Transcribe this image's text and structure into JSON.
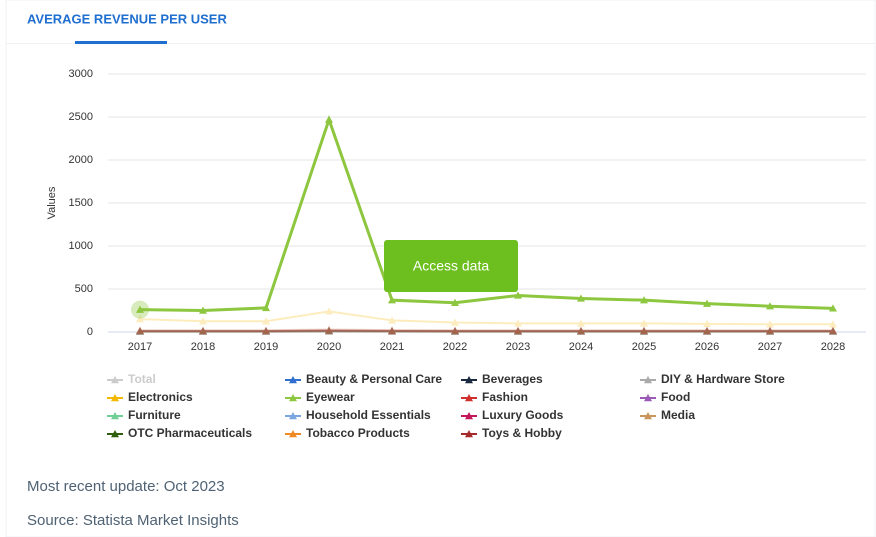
{
  "tab": "AVERAGE REVENUE PER USER",
  "button": "Access data",
  "footer": {
    "update": "Most recent update: Oct 2023",
    "source": "Source: Statista Market Insights"
  },
  "chart_data": {
    "type": "line",
    "y_label": "Values",
    "categories": [
      "2017",
      "2018",
      "2019",
      "2020",
      "2021",
      "2022",
      "2023",
      "2024",
      "2025",
      "2026",
      "2027",
      "2028"
    ],
    "ylim": [
      0,
      3000
    ],
    "yticks": [
      0,
      500,
      1000,
      1500,
      2000,
      2500,
      3000
    ],
    "grid": true,
    "highlighted": "Eyewear",
    "hover_index": 0,
    "series": [
      {
        "name": "Total",
        "color": "#bbbbbb",
        "visible": false,
        "values": [
          null,
          null,
          null,
          null,
          null,
          null,
          null,
          null,
          null,
          null,
          null,
          null
        ]
      },
      {
        "name": "Beauty & Personal Care",
        "color": "#2f6fd0",
        "values": [
          8,
          8,
          8,
          12,
          9,
          8,
          8,
          8,
          8,
          8,
          8,
          8
        ]
      },
      {
        "name": "Beverages",
        "color": "#1b2a41",
        "values": [
          5,
          5,
          5,
          8,
          6,
          5,
          5,
          5,
          5,
          5,
          5,
          5
        ]
      },
      {
        "name": "DIY & Hardware Store",
        "color": "#aaaaaa",
        "values": [
          10,
          10,
          10,
          15,
          11,
          10,
          10,
          10,
          10,
          10,
          10,
          10
        ]
      },
      {
        "name": "Electronics",
        "color": "#f5b800",
        "values": [
          150,
          125,
          125,
          240,
          135,
          110,
          100,
          100,
          100,
          95,
          90,
          90
        ]
      },
      {
        "name": "Eyewear",
        "color": "#8dc63f",
        "values": [
          260,
          250,
          280,
          2470,
          370,
          340,
          425,
          390,
          370,
          330,
          300,
          275
        ]
      },
      {
        "name": "Fashion",
        "color": "#d0312d",
        "values": [
          12,
          12,
          12,
          18,
          13,
          12,
          12,
          12,
          12,
          12,
          12,
          12
        ]
      },
      {
        "name": "Food",
        "color": "#9b59b6",
        "values": [
          6,
          6,
          6,
          9,
          7,
          6,
          6,
          6,
          6,
          6,
          6,
          6
        ]
      },
      {
        "name": "Furniture",
        "color": "#6fcf97",
        "values": [
          9,
          9,
          9,
          14,
          10,
          9,
          9,
          9,
          9,
          9,
          9,
          9
        ]
      },
      {
        "name": "Household Essentials",
        "color": "#7aa6e0",
        "values": [
          7,
          7,
          7,
          10,
          8,
          7,
          7,
          7,
          7,
          7,
          7,
          7
        ]
      },
      {
        "name": "Luxury Goods",
        "color": "#c2185b",
        "values": [
          15,
          15,
          15,
          22,
          16,
          15,
          15,
          15,
          15,
          15,
          15,
          15
        ]
      },
      {
        "name": "Media",
        "color": "#c8955a",
        "values": [
          20,
          20,
          20,
          30,
          22,
          20,
          20,
          20,
          20,
          20,
          20,
          20
        ]
      },
      {
        "name": "OTC Pharmaceuticals",
        "color": "#2e5e0e",
        "values": [
          5,
          5,
          5,
          7,
          6,
          5,
          5,
          5,
          5,
          5,
          5,
          5
        ]
      },
      {
        "name": "Tobacco Products",
        "color": "#f08a24",
        "values": [
          6,
          6,
          6,
          8,
          7,
          6,
          6,
          6,
          6,
          6,
          6,
          6
        ]
      },
      {
        "name": "Toys & Hobby",
        "color": "#a52a2a",
        "values": [
          10,
          10,
          10,
          14,
          11,
          10,
          10,
          10,
          10,
          10,
          10,
          10
        ]
      }
    ]
  }
}
